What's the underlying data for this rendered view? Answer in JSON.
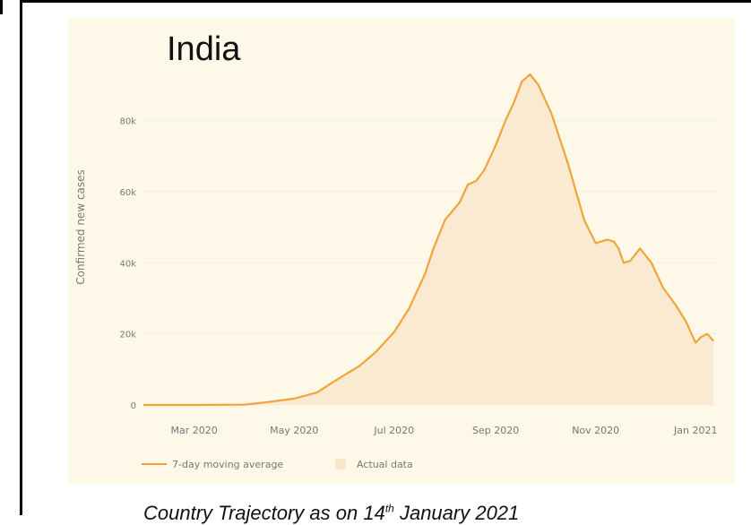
{
  "chart_data": {
    "type": "area",
    "title": "India",
    "ylabel": "Confirmed new cases",
    "xlabel": "",
    "ylim": [
      0,
      95000
    ],
    "yticks": [
      0,
      20000,
      40000,
      60000,
      80000
    ],
    "ytick_labels": [
      "0",
      "20k",
      "40k",
      "60k",
      "80k"
    ],
    "xticks": [
      "2020-03-01",
      "2020-05-01",
      "2020-07-01",
      "2020-09-01",
      "2020-11-01",
      "2021-01-01"
    ],
    "xtick_labels": [
      "Mar 2020",
      "May 2020",
      "Jul 2020",
      "Sep 2020",
      "Nov 2020",
      "Jan 2021"
    ],
    "xlim": [
      "2020-01-30",
      "2021-01-14"
    ],
    "legend": [
      "7-day moving average",
      "Actual data"
    ],
    "legend_position": "bottom-left",
    "grid": true,
    "colors": {
      "line": "#f2a33a",
      "area": "#f8e6cb",
      "background": "#fdf8e8",
      "grid": "#eeeeee",
      "axis_text": "#777777"
    },
    "series": [
      {
        "name": "7-day moving average",
        "x": [
          "2020-01-30",
          "2020-03-01",
          "2020-04-01",
          "2020-04-15",
          "2020-05-01",
          "2020-05-15",
          "2020-05-25",
          "2020-06-01",
          "2020-06-10",
          "2020-06-20",
          "2020-07-01",
          "2020-07-10",
          "2020-07-20",
          "2020-07-25",
          "2020-08-01",
          "2020-08-10",
          "2020-08-15",
          "2020-08-20",
          "2020-08-25",
          "2020-09-01",
          "2020-09-07",
          "2020-09-12",
          "2020-09-17",
          "2020-09-22",
          "2020-09-27",
          "2020-10-05",
          "2020-10-15",
          "2020-10-25",
          "2020-11-01",
          "2020-11-08",
          "2020-11-12",
          "2020-11-15",
          "2020-11-18",
          "2020-11-22",
          "2020-11-28",
          "2020-12-05",
          "2020-12-12",
          "2020-12-20",
          "2020-12-26",
          "2020-12-29",
          "2021-01-01",
          "2021-01-04",
          "2021-01-08",
          "2021-01-12"
        ],
        "y": [
          0,
          0,
          100,
          800,
          1800,
          3500,
          6500,
          8500,
          11000,
          15000,
          20500,
          27000,
          37000,
          44000,
          52000,
          57000,
          62000,
          63000,
          66000,
          73000,
          80000,
          85000,
          91000,
          93000,
          90000,
          82000,
          68000,
          52000,
          45500,
          46500,
          46000,
          44000,
          40000,
          40500,
          44000,
          40000,
          33000,
          28000,
          23500,
          20500,
          17500,
          19000,
          20000,
          18000
        ]
      }
    ]
  },
  "caption": {
    "text_before": "Country Trajectory as on 14",
    "superscript": "th",
    "text_after": " January 2021"
  }
}
